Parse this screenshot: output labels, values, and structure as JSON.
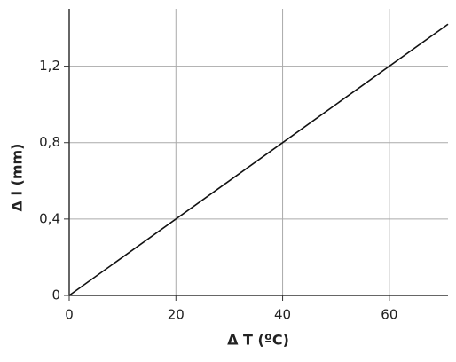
{
  "chart_data": {
    "type": "line",
    "x": [
      0,
      71
    ],
    "series": [
      {
        "values": [
          0,
          1.42
        ],
        "color": "#111111"
      }
    ],
    "xlim": [
      0,
      71
    ],
    "xticks": [
      0,
      20,
      40,
      60
    ],
    "ylim": [
      0,
      1.5
    ],
    "yticks": [
      0,
      {
        "value": 0.4,
        "label": "0,4"
      },
      {
        "value": 0.8,
        "label": "0,8"
      },
      {
        "value": 1.2,
        "label": "1,2"
      }
    ],
    "xlabel": "Δ T (ºC)",
    "ylabel": "Δ l (mm)",
    "grid": true
  }
}
